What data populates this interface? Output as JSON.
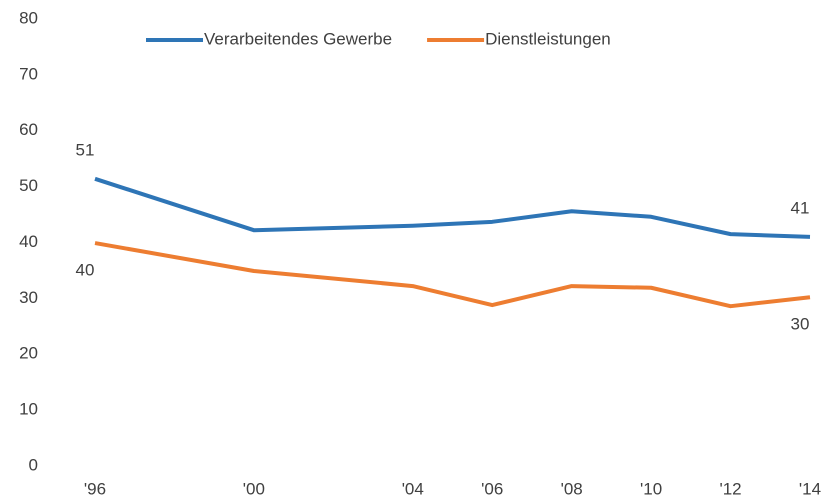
{
  "chart_data": {
    "type": "line",
    "x": [
      1996,
      2000,
      2004,
      2006,
      2008,
      2010,
      2012,
      2014
    ],
    "xlim": [
      1996,
      2014
    ],
    "xticks": [
      {
        "value": 1996,
        "label": "'96"
      },
      {
        "value": 2000,
        "label": "'00"
      },
      {
        "value": 2004,
        "label": "'04"
      },
      {
        "value": 2006,
        "label": "'06"
      },
      {
        "value": 2008,
        "label": "'08"
      },
      {
        "value": 2010,
        "label": "'10"
      },
      {
        "value": 2012,
        "label": "'12"
      },
      {
        "value": 2014,
        "label": "'14"
      }
    ],
    "ylim": [
      0,
      80
    ],
    "yticks": [
      0,
      10,
      20,
      30,
      40,
      50,
      60,
      70,
      80
    ],
    "series": [
      {
        "name": "Verarbeitendes Gewerbe",
        "color": "#2e75b6",
        "values": [
          51.4,
          42.2,
          43.0,
          43.7,
          45.6,
          44.6,
          41.5,
          41.0
        ],
        "value_labels": [
          "51",
          null,
          null,
          null,
          null,
          null,
          null,
          "41"
        ]
      },
      {
        "name": "Dienstleistungen",
        "color": "#ed7d31",
        "values": [
          39.9,
          34.9,
          32.2,
          28.8,
          32.2,
          31.9,
          28.6,
          30.2
        ],
        "value_labels": [
          "40",
          null,
          null,
          null,
          null,
          null,
          null,
          "30"
        ]
      }
    ]
  }
}
